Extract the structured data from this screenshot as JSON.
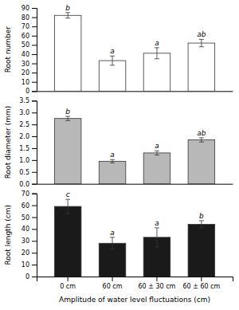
{
  "chart_data": [
    {
      "type": "bar",
      "categories": [
        "0 cm",
        "60 cm",
        "60 ± 30 cm",
        "60 ± 60 cm"
      ],
      "values": [
        82,
        33,
        41,
        52
      ],
      "errors": [
        3,
        5,
        6,
        4
      ],
      "annotations": [
        "b",
        "a",
        "a",
        "ab"
      ],
      "ylabel": "Root number",
      "ylim": [
        0,
        90
      ],
      "yticks": [
        0,
        10,
        20,
        30,
        40,
        50,
        60,
        70,
        80,
        90
      ],
      "color": "#ffffff",
      "grid": false,
      "tick_labels": "y"
    },
    {
      "type": "bar",
      "categories": [
        "0 cm",
        "60 cm",
        "60 ± 30 cm",
        "60 ± 60 cm"
      ],
      "values": [
        2.75,
        0.95,
        1.3,
        1.85
      ],
      "errors": [
        0.09,
        0.07,
        0.09,
        0.09
      ],
      "annotations": [
        "b",
        "a",
        "a",
        "ab"
      ],
      "ylabel": "Root diameter (mm)",
      "ylim": [
        0.0,
        3.5
      ],
      "yticks": [
        {
          "value": 0,
          "label": "0.0"
        },
        {
          "value": 0.5,
          "label": "0.5"
        },
        {
          "value": 1,
          "label": "1.0"
        },
        {
          "value": 1.5,
          "label": "1.5"
        },
        {
          "value": 2,
          "label": "2.0"
        },
        {
          "value": 2.5,
          "label": "2.5"
        },
        {
          "value": 3,
          "label": "3.0"
        },
        {
          "value": 3.5,
          "label": "3.5"
        }
      ],
      "color": "#b8b8b8",
      "grid": false,
      "tick_labels": "y"
    },
    {
      "type": "bar",
      "categories": [
        "0 cm",
        "60 cm",
        "60 ± 30 cm",
        "60 ± 60 cm"
      ],
      "values": [
        59,
        28,
        33,
        44
      ],
      "errors": [
        6,
        5,
        8,
        3
      ],
      "annotations": [
        "c",
        "a",
        "a",
        "b"
      ],
      "ylabel": "Root length (cm)",
      "xlabel": "Amplitude of water level fluctuations (cm)",
      "ylim": [
        0,
        70
      ],
      "yticks": [
        0,
        10,
        20,
        30,
        40,
        50,
        60,
        70
      ],
      "color": "#1a1a1a",
      "grid": false
    }
  ]
}
